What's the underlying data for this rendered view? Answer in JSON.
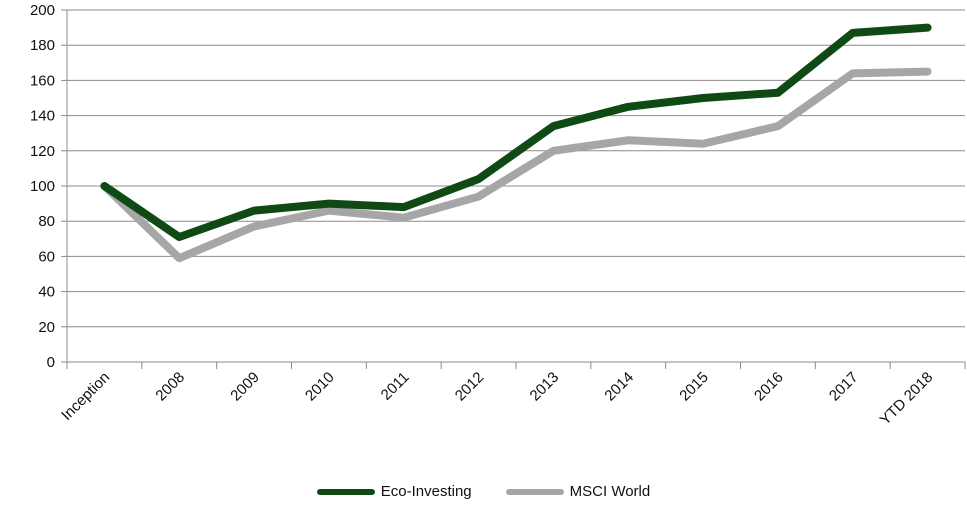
{
  "chart_data": {
    "type": "line",
    "categories": [
      "Inception",
      "2008",
      "2009",
      "2010",
      "2011",
      "2012",
      "2013",
      "2014",
      "2015",
      "2016",
      "2017",
      "YTD 2018"
    ],
    "series": [
      {
        "name": "Eco-Investing",
        "color": "#0f4a14",
        "values": [
          100,
          71,
          86,
          90,
          88,
          104,
          134,
          145,
          150,
          153,
          187,
          190
        ]
      },
      {
        "name": "MSCI World",
        "color": "#a6a6a6",
        "values": [
          100,
          59,
          77,
          86,
          82,
          94,
          120,
          126,
          124,
          134,
          164,
          165
        ]
      }
    ],
    "ylim": [
      0,
      200
    ],
    "yticks": [
      0,
      20,
      40,
      60,
      80,
      100,
      120,
      140,
      160,
      180,
      200
    ],
    "grid": true,
    "legend_position": "bottom"
  }
}
